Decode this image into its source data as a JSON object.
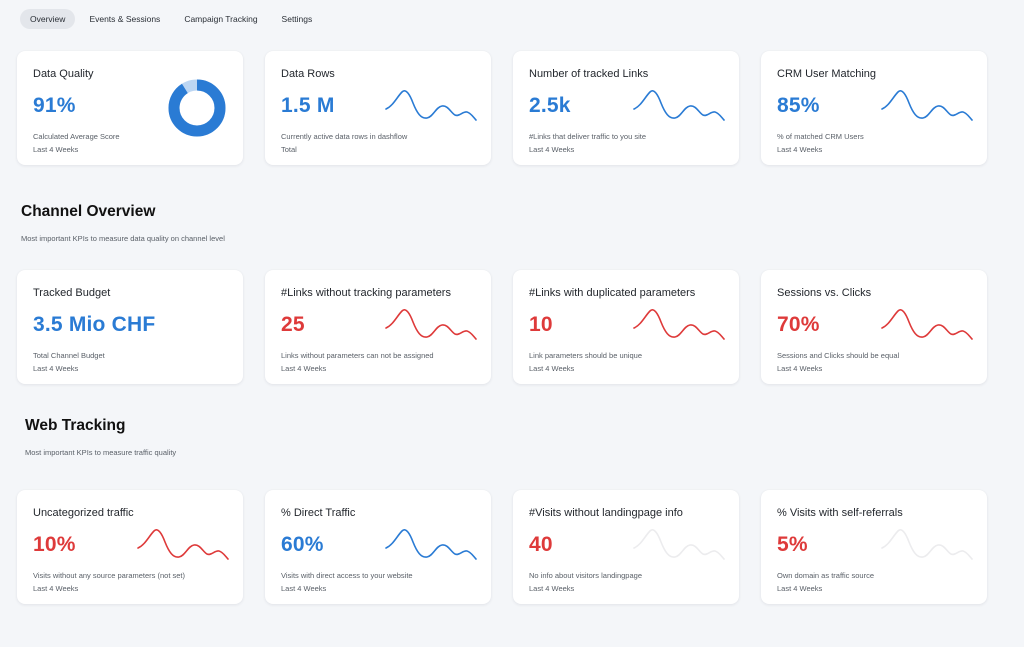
{
  "tabs": [
    {
      "label": "Overview",
      "active": true
    },
    {
      "label": "Events & Sessions",
      "active": false
    },
    {
      "label": "Campaign Tracking",
      "active": false
    },
    {
      "label": "Settings",
      "active": false
    }
  ],
  "top_cards": [
    {
      "title": "Data Quality",
      "value": "91%",
      "desc": "Calculated Average Score",
      "period": "Last 4 Weeks",
      "color": "blue",
      "chart": "donut",
      "donut_fraction": 0.91
    },
    {
      "title": "Data Rows",
      "value": "1.5 M",
      "desc": "Currently active data rows in dashflow",
      "period": "Total",
      "color": "blue",
      "chart": "spark"
    },
    {
      "title": "Number of tracked Links",
      "value": "2.5k",
      "desc": "#Links that deliver traffic to you site",
      "period": "Last 4 Weeks",
      "color": "blue",
      "chart": "spark"
    },
    {
      "title": "CRM User Matching",
      "value": "85%",
      "desc": "% of matched CRM Users",
      "period": "Last 4 Weeks",
      "color": "blue",
      "chart": "spark"
    }
  ],
  "channel": {
    "title": "Channel Overview",
    "subtitle": "Most important KPIs to measure data quality on channel level",
    "cards": [
      {
        "title": "Tracked Budget",
        "value": "3.5 Mio CHF",
        "desc": "Total Channel Budget",
        "period": "Last 4 Weeks",
        "color": "blue",
        "chart": "none"
      },
      {
        "title": "#Links without tracking parameters",
        "value": "25",
        "desc": "Links without parameters can not be assigned",
        "period": "Last 4 Weeks",
        "color": "red",
        "chart": "spark"
      },
      {
        "title": "#Links with duplicated parameters",
        "value": "10",
        "desc": "Link parameters should be unique",
        "period": "Last 4 Weeks",
        "color": "red",
        "chart": "spark"
      },
      {
        "title": "Sessions vs. Clicks",
        "value": "70%",
        "desc": "Sessions and Clicks should be equal",
        "period": "Last 4 Weeks",
        "color": "red",
        "chart": "spark"
      }
    ]
  },
  "web": {
    "title": "Web Tracking",
    "subtitle": "Most important KPIs to measure traffic quality",
    "cards": [
      {
        "title": "Uncategorized traffic",
        "value": "10%",
        "desc": "Visits without any source parameters (not set)",
        "period": "Last 4 Weeks",
        "color": "red",
        "chart": "spark"
      },
      {
        "title": "% Direct Traffic",
        "value": "60%",
        "desc": "Visits with direct access to your website",
        "period": "Last 4 Weeks",
        "color": "blue",
        "chart": "spark"
      },
      {
        "title": "#Visits without landingpage info",
        "value": "40",
        "desc": "No info about visitors landingpage",
        "period": "Last 4 Weeks",
        "color": "red",
        "chart": "faint"
      },
      {
        "title": "% Visits with self-referrals",
        "value": "5%",
        "desc": "Own domain as traffic source",
        "period": "Last 4 Weeks",
        "color": "red",
        "chart": "faint"
      }
    ]
  },
  "colors": {
    "blue": "#2a7bd4",
    "red": "#de3a3a",
    "faint": "#ececee",
    "donut_track": "#bcd6f3"
  }
}
